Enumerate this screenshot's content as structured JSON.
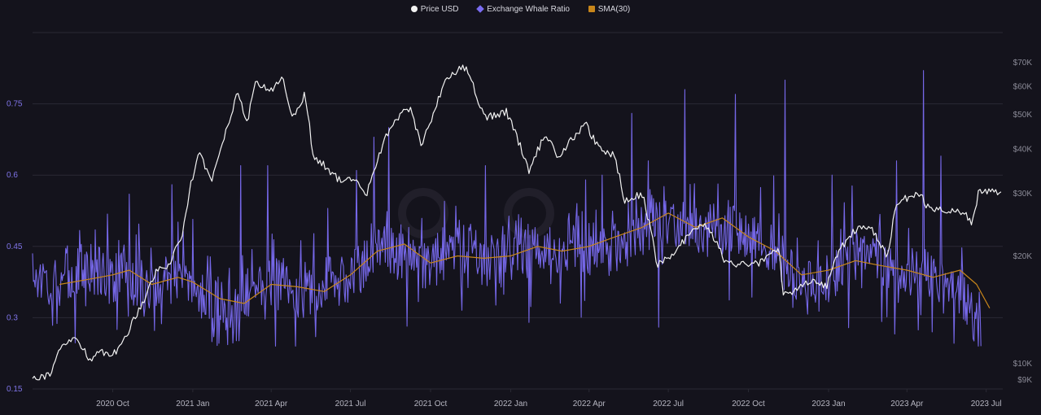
{
  "colors": {
    "background": "#14131c",
    "grid": "#2a2934",
    "price": "#f2f2f2",
    "ratio": "#7a6cf2",
    "sma": "#c8861a",
    "left_axis_text": "#7f74e8",
    "right_axis_text": "#8a8a96",
    "x_axis_text": "#b5b5c0"
  },
  "chart_data": {
    "type": "line",
    "title": "",
    "legend": {
      "placement": "top-center",
      "items": [
        {
          "label": "Price USD",
          "marker": "circle",
          "color": "#f2f2f2"
        },
        {
          "label": "Exchange Whale Ratio",
          "marker": "diamond",
          "color": "#7a6cf2"
        },
        {
          "label": "SMA(30)",
          "marker": "square",
          "color": "#c8861a"
        }
      ]
    },
    "x_axis": {
      "range": [
        "2020-07-01",
        "2023-07-20"
      ],
      "ticks": [
        {
          "date": "2020-10-01",
          "label": "2020 Oct"
        },
        {
          "date": "2021-01-01",
          "label": "2021 Jan"
        },
        {
          "date": "2021-04-01",
          "label": "2021 Apr"
        },
        {
          "date": "2021-07-01",
          "label": "2021 Jul"
        },
        {
          "date": "2021-10-01",
          "label": "2021 Oct"
        },
        {
          "date": "2022-01-01",
          "label": "2022 Jan"
        },
        {
          "date": "2022-04-01",
          "label": "2022 Apr"
        },
        {
          "date": "2022-07-01",
          "label": "2022 Jul"
        },
        {
          "date": "2022-10-01",
          "label": "2022 Oct"
        },
        {
          "date": "2023-01-01",
          "label": "2023 Jan"
        },
        {
          "date": "2023-04-01",
          "label": "2023 Apr"
        },
        {
          "date": "2023-07-01",
          "label": "2023 Jul"
        }
      ]
    },
    "y_left": {
      "range": [
        0.15,
        0.9
      ],
      "ticks": [
        {
          "value": 0.15,
          "label": "0.15"
        },
        {
          "value": 0.3,
          "label": "0.3"
        },
        {
          "value": 0.45,
          "label": "0.45"
        },
        {
          "value": 0.6,
          "label": "0.6"
        },
        {
          "value": 0.75,
          "label": "0.75"
        }
      ],
      "grid": true
    },
    "y_right": {
      "scale": "log",
      "range": [
        8500,
        85000
      ],
      "ticks": [
        {
          "value": 9000,
          "label": "$9K"
        },
        {
          "value": 10000,
          "label": "$10K"
        },
        {
          "value": 20000,
          "label": "$20K"
        },
        {
          "value": 30000,
          "label": "$30K"
        },
        {
          "value": 40000,
          "label": "$40K"
        },
        {
          "value": 50000,
          "label": "$50K"
        },
        {
          "value": 60000,
          "label": "$60K"
        },
        {
          "value": 70000,
          "label": "$70K"
        }
      ]
    },
    "series": [
      {
        "name": "Price USD",
        "axis": "right",
        "points": [
          [
            "2020-07-01",
            9200
          ],
          [
            "2020-07-20",
            9300
          ],
          [
            "2020-08-05",
            11300
          ],
          [
            "2020-08-20",
            11800
          ],
          [
            "2020-09-05",
            10300
          ],
          [
            "2020-09-20",
            10800
          ],
          [
            "2020-10-05",
            10700
          ],
          [
            "2020-10-20",
            12500
          ],
          [
            "2020-11-05",
            15000
          ],
          [
            "2020-11-20",
            18200
          ],
          [
            "2020-12-05",
            19000
          ],
          [
            "2020-12-20",
            23000
          ],
          [
            "2021-01-08",
            40000
          ],
          [
            "2021-01-22",
            32000
          ],
          [
            "2021-02-08",
            45000
          ],
          [
            "2021-02-21",
            57000
          ],
          [
            "2021-03-05",
            48000
          ],
          [
            "2021-03-13",
            61000
          ],
          [
            "2021-04-01",
            58500
          ],
          [
            "2021-04-14",
            63500
          ],
          [
            "2021-04-25",
            49000
          ],
          [
            "2021-05-10",
            57000
          ],
          [
            "2021-05-19",
            38000
          ],
          [
            "2021-06-01",
            36000
          ],
          [
            "2021-06-22",
            32000
          ],
          [
            "2021-07-01",
            33500
          ],
          [
            "2021-07-20",
            30000
          ],
          [
            "2021-08-05",
            40000
          ],
          [
            "2021-08-22",
            49000
          ],
          [
            "2021-09-07",
            52000
          ],
          [
            "2021-09-21",
            41000
          ],
          [
            "2021-10-05",
            51000
          ],
          [
            "2021-10-20",
            64000
          ],
          [
            "2021-11-10",
            68000
          ],
          [
            "2021-11-26",
            54000
          ],
          [
            "2021-12-05",
            49000
          ],
          [
            "2021-12-27",
            51000
          ],
          [
            "2022-01-10",
            42000
          ],
          [
            "2022-01-22",
            35000
          ],
          [
            "2022-02-10",
            44000
          ],
          [
            "2022-02-24",
            38000
          ],
          [
            "2022-03-28",
            47000
          ],
          [
            "2022-04-12",
            40000
          ],
          [
            "2022-04-30",
            38500
          ],
          [
            "2022-05-12",
            28500
          ],
          [
            "2022-06-01",
            30000
          ],
          [
            "2022-06-18",
            19000
          ],
          [
            "2022-07-05",
            20000
          ],
          [
            "2022-07-30",
            23800
          ],
          [
            "2022-08-14",
            24400
          ],
          [
            "2022-09-06",
            19000
          ],
          [
            "2022-09-20",
            19000
          ],
          [
            "2022-10-15",
            19200
          ],
          [
            "2022-11-05",
            21000
          ],
          [
            "2022-11-09",
            16000
          ],
          [
            "2022-11-21",
            15800
          ],
          [
            "2022-12-15",
            17300
          ],
          [
            "2022-12-30",
            16550
          ],
          [
            "2023-01-14",
            21000
          ],
          [
            "2023-01-30",
            23500
          ],
          [
            "2023-02-16",
            24500
          ],
          [
            "2023-03-10",
            20000
          ],
          [
            "2023-03-20",
            28000
          ],
          [
            "2023-04-14",
            30400
          ],
          [
            "2023-04-25",
            27500
          ],
          [
            "2023-05-11",
            27000
          ],
          [
            "2023-06-01",
            27000
          ],
          [
            "2023-06-15",
            25000
          ],
          [
            "2023-06-22",
            30000
          ],
          [
            "2023-07-05",
            30800
          ],
          [
            "2023-07-18",
            29900
          ]
        ]
      },
      {
        "name": "Exchange Whale Ratio",
        "axis": "left",
        "points": [
          [
            "2020-07-01",
            0.4
          ],
          [
            "2020-07-15",
            0.38
          ],
          [
            "2020-08-01",
            0.37
          ],
          [
            "2020-08-15",
            0.39
          ],
          [
            "2020-09-01",
            0.41
          ],
          [
            "2020-09-15",
            0.4
          ],
          [
            "2020-10-01",
            0.39
          ],
          [
            "2020-10-15",
            0.37
          ],
          [
            "2020-11-01",
            0.38
          ],
          [
            "2020-11-15",
            0.36
          ],
          [
            "2020-12-01",
            0.38
          ],
          [
            "2020-12-15",
            0.39
          ],
          [
            "2021-01-01",
            0.37
          ],
          [
            "2021-01-15",
            0.34
          ],
          [
            "2021-02-01",
            0.33
          ],
          [
            "2021-02-15",
            0.32
          ],
          [
            "2021-03-01",
            0.34
          ],
          [
            "2021-03-15",
            0.37
          ],
          [
            "2021-04-01",
            0.38
          ],
          [
            "2021-04-15",
            0.36
          ],
          [
            "2021-05-01",
            0.34
          ],
          [
            "2021-05-15",
            0.35
          ],
          [
            "2021-06-01",
            0.38
          ],
          [
            "2021-06-15",
            0.37
          ],
          [
            "2021-07-01",
            0.39
          ],
          [
            "2021-07-15",
            0.41
          ],
          [
            "2021-08-01",
            0.45
          ],
          [
            "2021-08-15",
            0.44
          ],
          [
            "2021-09-01",
            0.45
          ],
          [
            "2021-09-15",
            0.42
          ],
          [
            "2021-10-01",
            0.41
          ],
          [
            "2021-10-15",
            0.43
          ],
          [
            "2021-11-01",
            0.44
          ],
          [
            "2021-11-15",
            0.45
          ],
          [
            "2021-12-01",
            0.42
          ],
          [
            "2021-12-15",
            0.41
          ],
          [
            "2022-01-01",
            0.43
          ],
          [
            "2022-01-15",
            0.44
          ],
          [
            "2022-02-01",
            0.45
          ],
          [
            "2022-02-15",
            0.44
          ],
          [
            "2022-03-01",
            0.45
          ],
          [
            "2022-03-15",
            0.46
          ],
          [
            "2022-04-01",
            0.44
          ],
          [
            "2022-04-15",
            0.46
          ],
          [
            "2022-05-01",
            0.45
          ],
          [
            "2022-05-15",
            0.46
          ],
          [
            "2022-06-01",
            0.48
          ],
          [
            "2022-06-15",
            0.5
          ],
          [
            "2022-07-01",
            0.51
          ],
          [
            "2022-07-15",
            0.5
          ],
          [
            "2022-08-01",
            0.49
          ],
          [
            "2022-08-15",
            0.48
          ],
          [
            "2022-09-01",
            0.5
          ],
          [
            "2022-09-15",
            0.49
          ],
          [
            "2022-10-01",
            0.47
          ],
          [
            "2022-10-15",
            0.45
          ],
          [
            "2022-11-01",
            0.44
          ],
          [
            "2022-11-15",
            0.4
          ],
          [
            "2022-12-01",
            0.37
          ],
          [
            "2022-12-15",
            0.36
          ],
          [
            "2023-01-01",
            0.38
          ],
          [
            "2023-01-15",
            0.41
          ],
          [
            "2023-02-01",
            0.43
          ],
          [
            "2023-02-15",
            0.42
          ],
          [
            "2023-03-01",
            0.41
          ],
          [
            "2023-03-15",
            0.39
          ],
          [
            "2023-04-01",
            0.38
          ],
          [
            "2023-04-15",
            0.39
          ],
          [
            "2023-05-01",
            0.39
          ],
          [
            "2023-05-15",
            0.38
          ],
          [
            "2023-06-01",
            0.36
          ],
          [
            "2023-06-15",
            0.3
          ],
          [
            "2023-06-25",
            0.27
          ]
        ],
        "spikes": [
          [
            "2020-10-20",
            0.56
          ],
          [
            "2020-12-08",
            0.58
          ],
          [
            "2021-02-25",
            0.62
          ],
          [
            "2021-03-28",
            0.62
          ],
          [
            "2021-06-05",
            0.53
          ],
          [
            "2021-07-08",
            0.61
          ],
          [
            "2021-07-28",
            0.68
          ],
          [
            "2021-08-14",
            0.7
          ],
          [
            "2021-12-03",
            0.62
          ],
          [
            "2022-03-28",
            0.59
          ],
          [
            "2022-04-16",
            0.6
          ],
          [
            "2022-05-20",
            0.73
          ],
          [
            "2022-06-08",
            0.63
          ],
          [
            "2022-07-20",
            0.78
          ],
          [
            "2022-09-16",
            0.77
          ],
          [
            "2022-11-12",
            0.8
          ],
          [
            "2023-01-05",
            0.6
          ],
          [
            "2023-03-20",
            0.63
          ],
          [
            "2023-04-20",
            0.82
          ],
          [
            "2023-05-10",
            0.64
          ],
          [
            "2021-01-25",
            0.26
          ],
          [
            "2021-05-22",
            0.26
          ],
          [
            "2022-01-22",
            0.29
          ],
          [
            "2022-06-20",
            0.28
          ],
          [
            "2023-04-30",
            0.27
          ]
        ]
      },
      {
        "name": "SMA(30)",
        "axis": "left",
        "points": [
          [
            "2020-08-01",
            0.37
          ],
          [
            "2020-09-01",
            0.38
          ],
          [
            "2020-10-01",
            0.39
          ],
          [
            "2020-10-20",
            0.4
          ],
          [
            "2020-11-15",
            0.37
          ],
          [
            "2020-12-15",
            0.385
          ],
          [
            "2021-01-01",
            0.375
          ],
          [
            "2021-02-01",
            0.34
          ],
          [
            "2021-03-01",
            0.33
          ],
          [
            "2021-04-01",
            0.37
          ],
          [
            "2021-05-01",
            0.365
          ],
          [
            "2021-06-01",
            0.355
          ],
          [
            "2021-07-01",
            0.39
          ],
          [
            "2021-08-01",
            0.44
          ],
          [
            "2021-09-01",
            0.455
          ],
          [
            "2021-10-01",
            0.415
          ],
          [
            "2021-11-01",
            0.43
          ],
          [
            "2021-12-01",
            0.425
          ],
          [
            "2022-01-01",
            0.43
          ],
          [
            "2022-02-01",
            0.45
          ],
          [
            "2022-03-01",
            0.44
          ],
          [
            "2022-04-01",
            0.45
          ],
          [
            "2022-05-01",
            0.47
          ],
          [
            "2022-06-01",
            0.49
          ],
          [
            "2022-07-01",
            0.52
          ],
          [
            "2022-08-01",
            0.49
          ],
          [
            "2022-09-01",
            0.51
          ],
          [
            "2022-10-01",
            0.47
          ],
          [
            "2022-11-01",
            0.44
          ],
          [
            "2022-12-01",
            0.39
          ],
          [
            "2023-01-01",
            0.4
          ],
          [
            "2023-02-01",
            0.42
          ],
          [
            "2023-03-01",
            0.41
          ],
          [
            "2023-04-01",
            0.4
          ],
          [
            "2023-05-01",
            0.385
          ],
          [
            "2023-06-01",
            0.4
          ],
          [
            "2023-06-20",
            0.37
          ],
          [
            "2023-07-05",
            0.32
          ]
        ]
      }
    ]
  }
}
